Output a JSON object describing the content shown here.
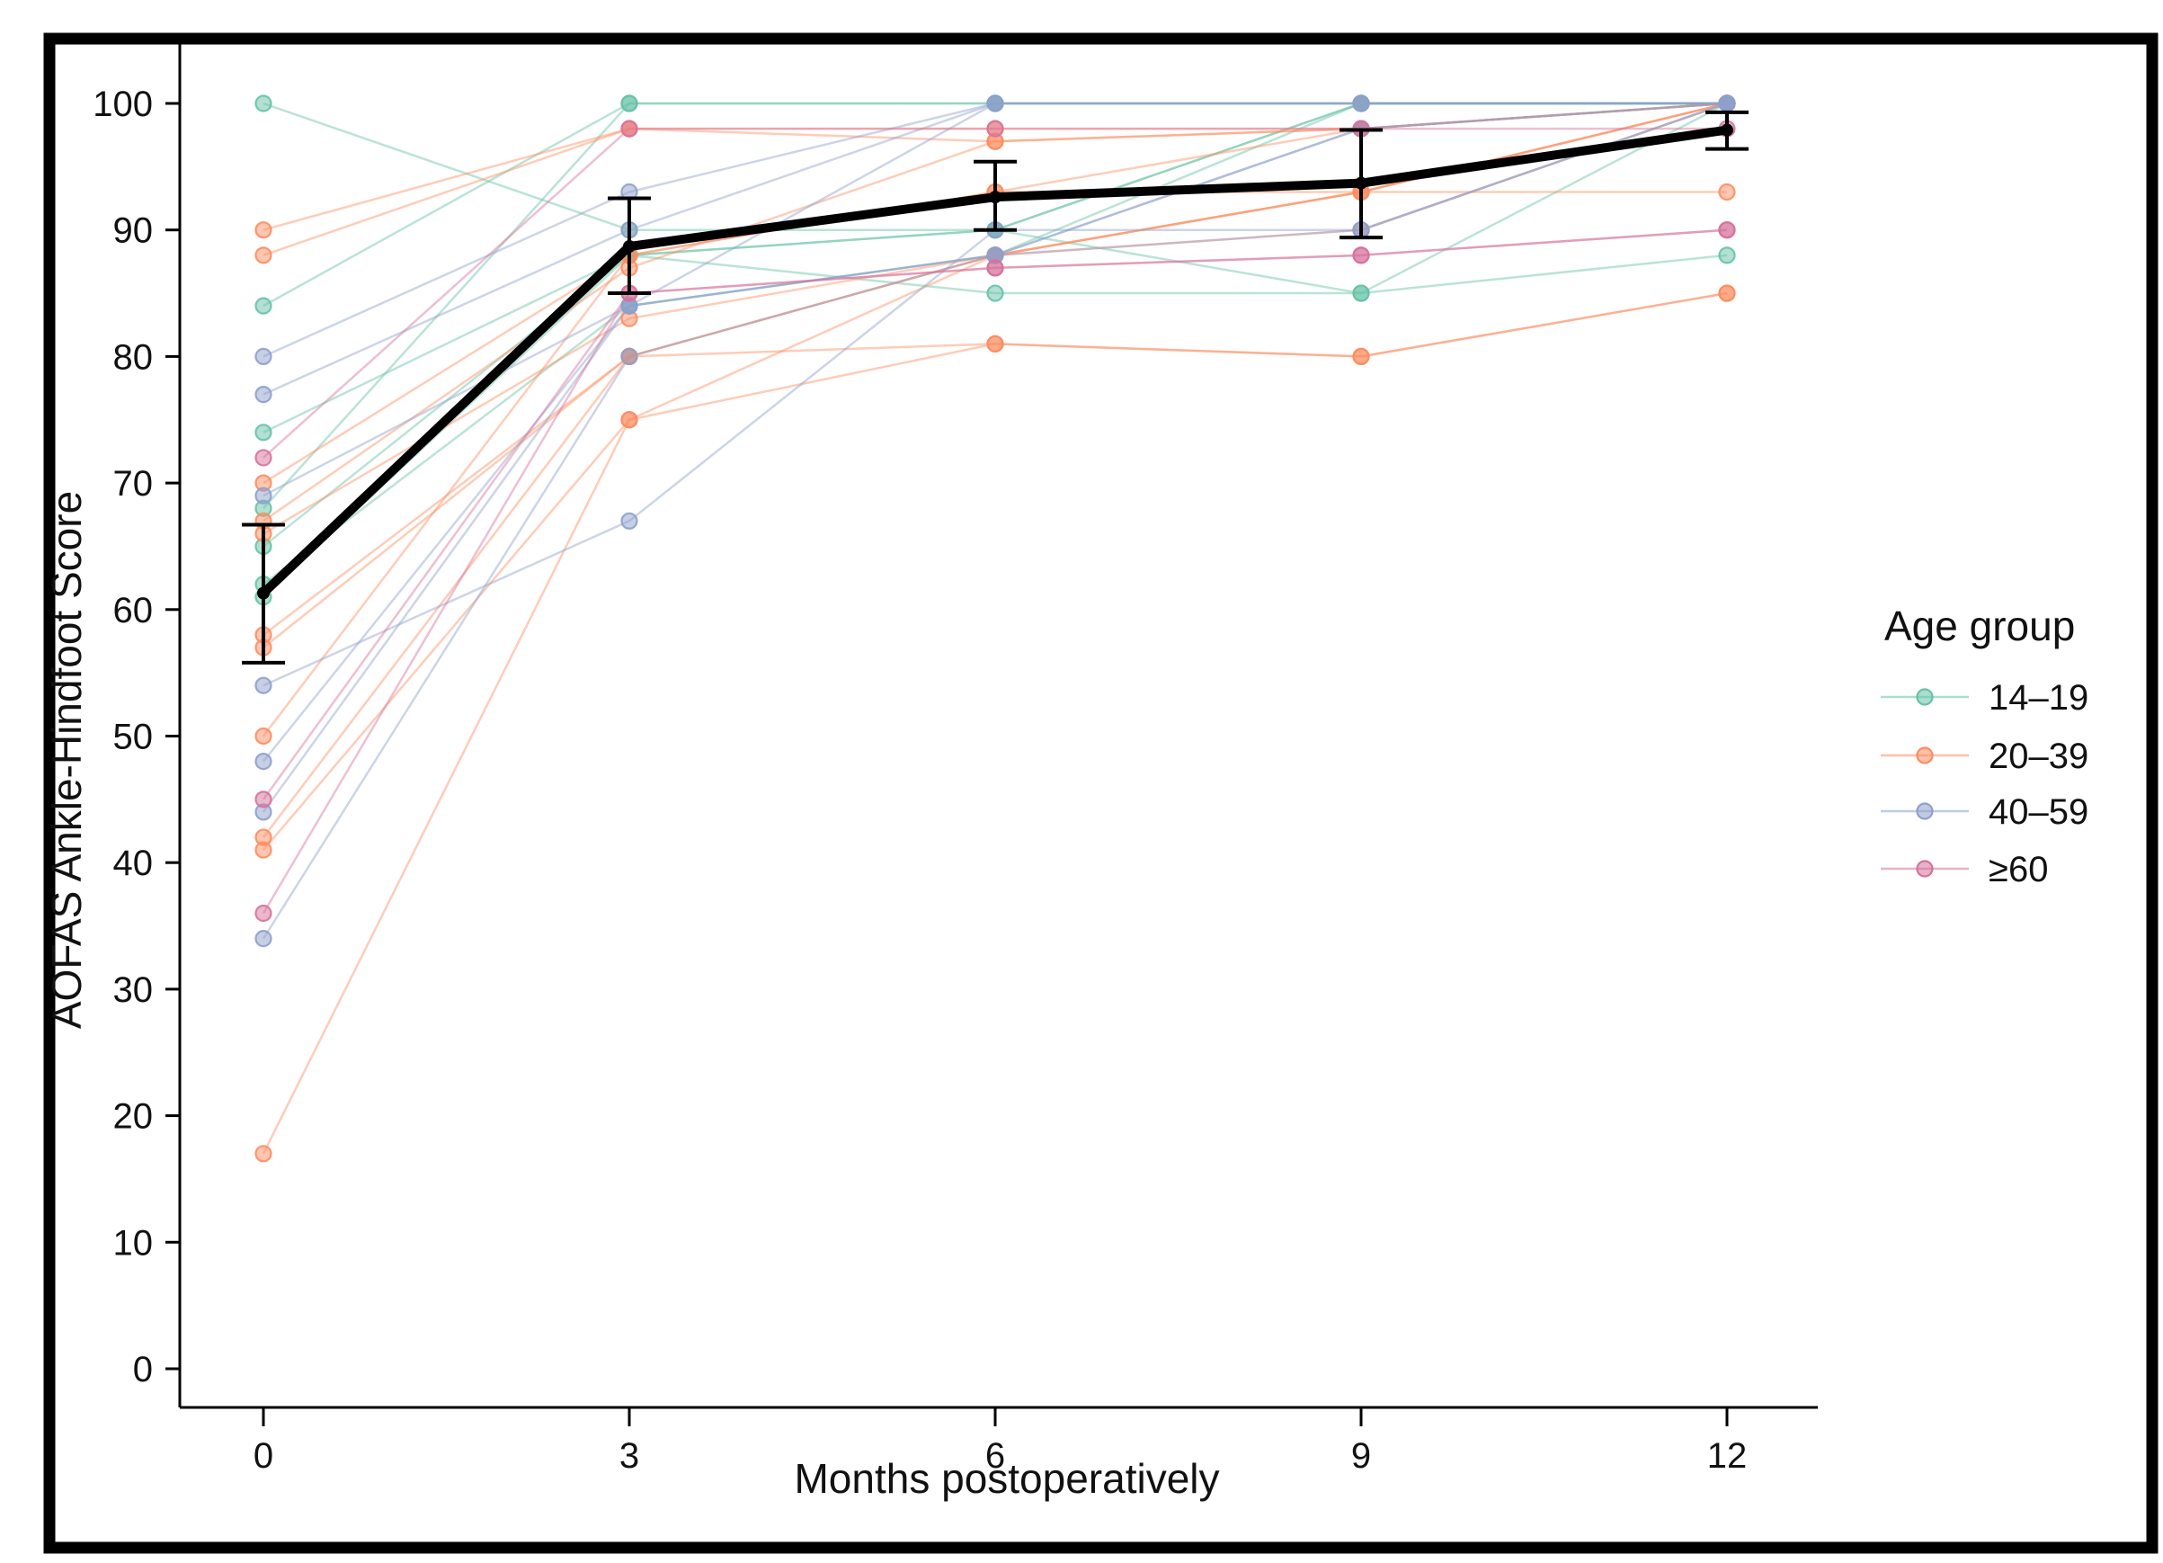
{
  "figure": {
    "background": "#ffffff",
    "border_color": "#000000"
  },
  "chart_data": {
    "type": "line",
    "title": "",
    "xlabel": "Months postoperatively",
    "ylabel": "AOFAS Ankle-Hindfoot Score",
    "x": [
      0,
      3,
      6,
      9,
      12
    ],
    "x_tick_labels": [
      "0",
      "3",
      "6",
      "9",
      "12"
    ],
    "y_ticks": [
      0,
      10,
      20,
      30,
      40,
      50,
      60,
      70,
      80,
      90,
      100
    ],
    "ylim": [
      0,
      100
    ],
    "grid": false,
    "legend": {
      "title": "Age group",
      "position": "right"
    },
    "groups": [
      {
        "id": "14-19",
        "label": "14–19",
        "color": "#66C2A5"
      },
      {
        "id": "20-39",
        "label": "20–39",
        "color": "#FC8D62"
      },
      {
        "id": "40-59",
        "label": "40–59",
        "color": "#8DA0CB"
      },
      {
        "id": "60+",
        "label": "≥60",
        "color": "#D6729B"
      }
    ],
    "series": [
      {
        "group": "14-19",
        "values": [
          100,
          90,
          90,
          85,
          88
        ]
      },
      {
        "group": "14-19",
        "values": [
          84,
          100,
          100,
          100,
          100
        ]
      },
      {
        "group": "14-19",
        "values": [
          74,
          88,
          85,
          85,
          100
        ]
      },
      {
        "group": "14-19",
        "values": [
          68,
          100,
          100,
          100,
          100
        ]
      },
      {
        "group": "14-19",
        "values": [
          65,
          88,
          90,
          100,
          100
        ]
      },
      {
        "group": "14-19",
        "values": [
          62,
          84,
          88,
          100,
          100
        ]
      },
      {
        "group": "14-19",
        "values": [
          61,
          88,
          90,
          100,
          100
        ]
      },
      {
        "group": "20-39",
        "values": [
          90,
          98,
          98,
          98,
          100
        ]
      },
      {
        "group": "20-39",
        "values": [
          88,
          98,
          97,
          98,
          100
        ]
      },
      {
        "group": "20-39",
        "values": [
          70,
          88,
          93,
          93,
          93
        ]
      },
      {
        "group": "20-39",
        "values": [
          67,
          87,
          97,
          98,
          100
        ]
      },
      {
        "group": "20-39",
        "values": [
          66,
          83,
          88,
          93,
          100
        ]
      },
      {
        "group": "20-39",
        "values": [
          58,
          80,
          81,
          80,
          85
        ]
      },
      {
        "group": "20-39",
        "values": [
          57,
          80,
          88,
          90,
          100
        ]
      },
      {
        "group": "20-39",
        "values": [
          50,
          88,
          93,
          98,
          100
        ]
      },
      {
        "group": "20-39",
        "values": [
          42,
          80,
          88,
          93,
          100
        ]
      },
      {
        "group": "20-39",
        "values": [
          41,
          75,
          88,
          93,
          100
        ]
      },
      {
        "group": "20-39",
        "values": [
          17,
          75,
          81,
          80,
          85
        ]
      },
      {
        "group": "40-59",
        "values": [
          80,
          93,
          100,
          100,
          100
        ]
      },
      {
        "group": "40-59",
        "values": [
          77,
          90,
          100,
          100,
          100
        ]
      },
      {
        "group": "40-59",
        "values": [
          69,
          84,
          88,
          90,
          100
        ]
      },
      {
        "group": "40-59",
        "values": [
          54,
          67,
          90,
          90,
          100
        ]
      },
      {
        "group": "40-59",
        "values": [
          48,
          84,
          100,
          100,
          100
        ]
      },
      {
        "group": "40-59",
        "values": [
          44,
          84,
          88,
          98,
          100
        ]
      },
      {
        "group": "40-59",
        "values": [
          34,
          80,
          88,
          98,
          100
        ]
      },
      {
        "group": "60+",
        "values": [
          72,
          98,
          98,
          98,
          98
        ]
      },
      {
        "group": "60+",
        "values": [
          45,
          85,
          87,
          88,
          90
        ]
      },
      {
        "group": "60+",
        "values": [
          36,
          85,
          87,
          88,
          90
        ]
      }
    ],
    "mean_series": {
      "color": "#000000",
      "values": [
        61.3,
        88.7,
        92.6,
        93.7,
        97.9
      ],
      "ci_low": [
        55.8,
        85.0,
        90.0,
        89.4,
        96.4
      ],
      "ci_high": [
        66.7,
        92.5,
        95.4,
        97.9,
        99.3
      ]
    }
  }
}
